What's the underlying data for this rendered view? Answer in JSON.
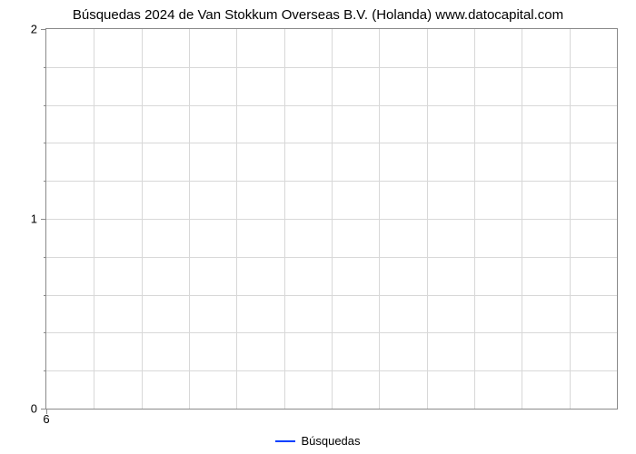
{
  "chart": {
    "type": "line",
    "title": "Búsquedas 2024 de Van Stokkum Overseas B.V. (Holanda) www.datocapital.com",
    "title_fontsize": 15,
    "title_color": "#000000",
    "background_color": "#ffffff",
    "plot_border_color": "#8a8a8a",
    "grid_color": "#d8d8d8",
    "grid_on": true,
    "x": {
      "lim": [
        6,
        18
      ],
      "major_ticks": [
        6
      ],
      "major_tick_labels": [
        "6"
      ],
      "grid_lines": [
        6,
        7,
        8,
        9,
        10,
        11,
        12,
        13,
        14,
        15,
        16,
        17,
        18
      ],
      "tick_fontsize": 13,
      "tick_color": "#000000"
    },
    "y": {
      "lim": [
        0,
        2
      ],
      "major_ticks": [
        0,
        1,
        2
      ],
      "major_tick_labels": [
        "0",
        "1",
        "2"
      ],
      "minor_ticks": [
        0.2,
        0.4,
        0.6,
        0.8,
        1.2,
        1.4,
        1.6,
        1.8
      ],
      "tick_fontsize": 13,
      "tick_color": "#000000"
    },
    "series": [
      {
        "name": "Búsquedas",
        "color": "#0040ff",
        "line_width": 2,
        "x": [],
        "y": []
      }
    ],
    "legend": {
      "position": "bottom-center",
      "fontsize": 13
    }
  }
}
